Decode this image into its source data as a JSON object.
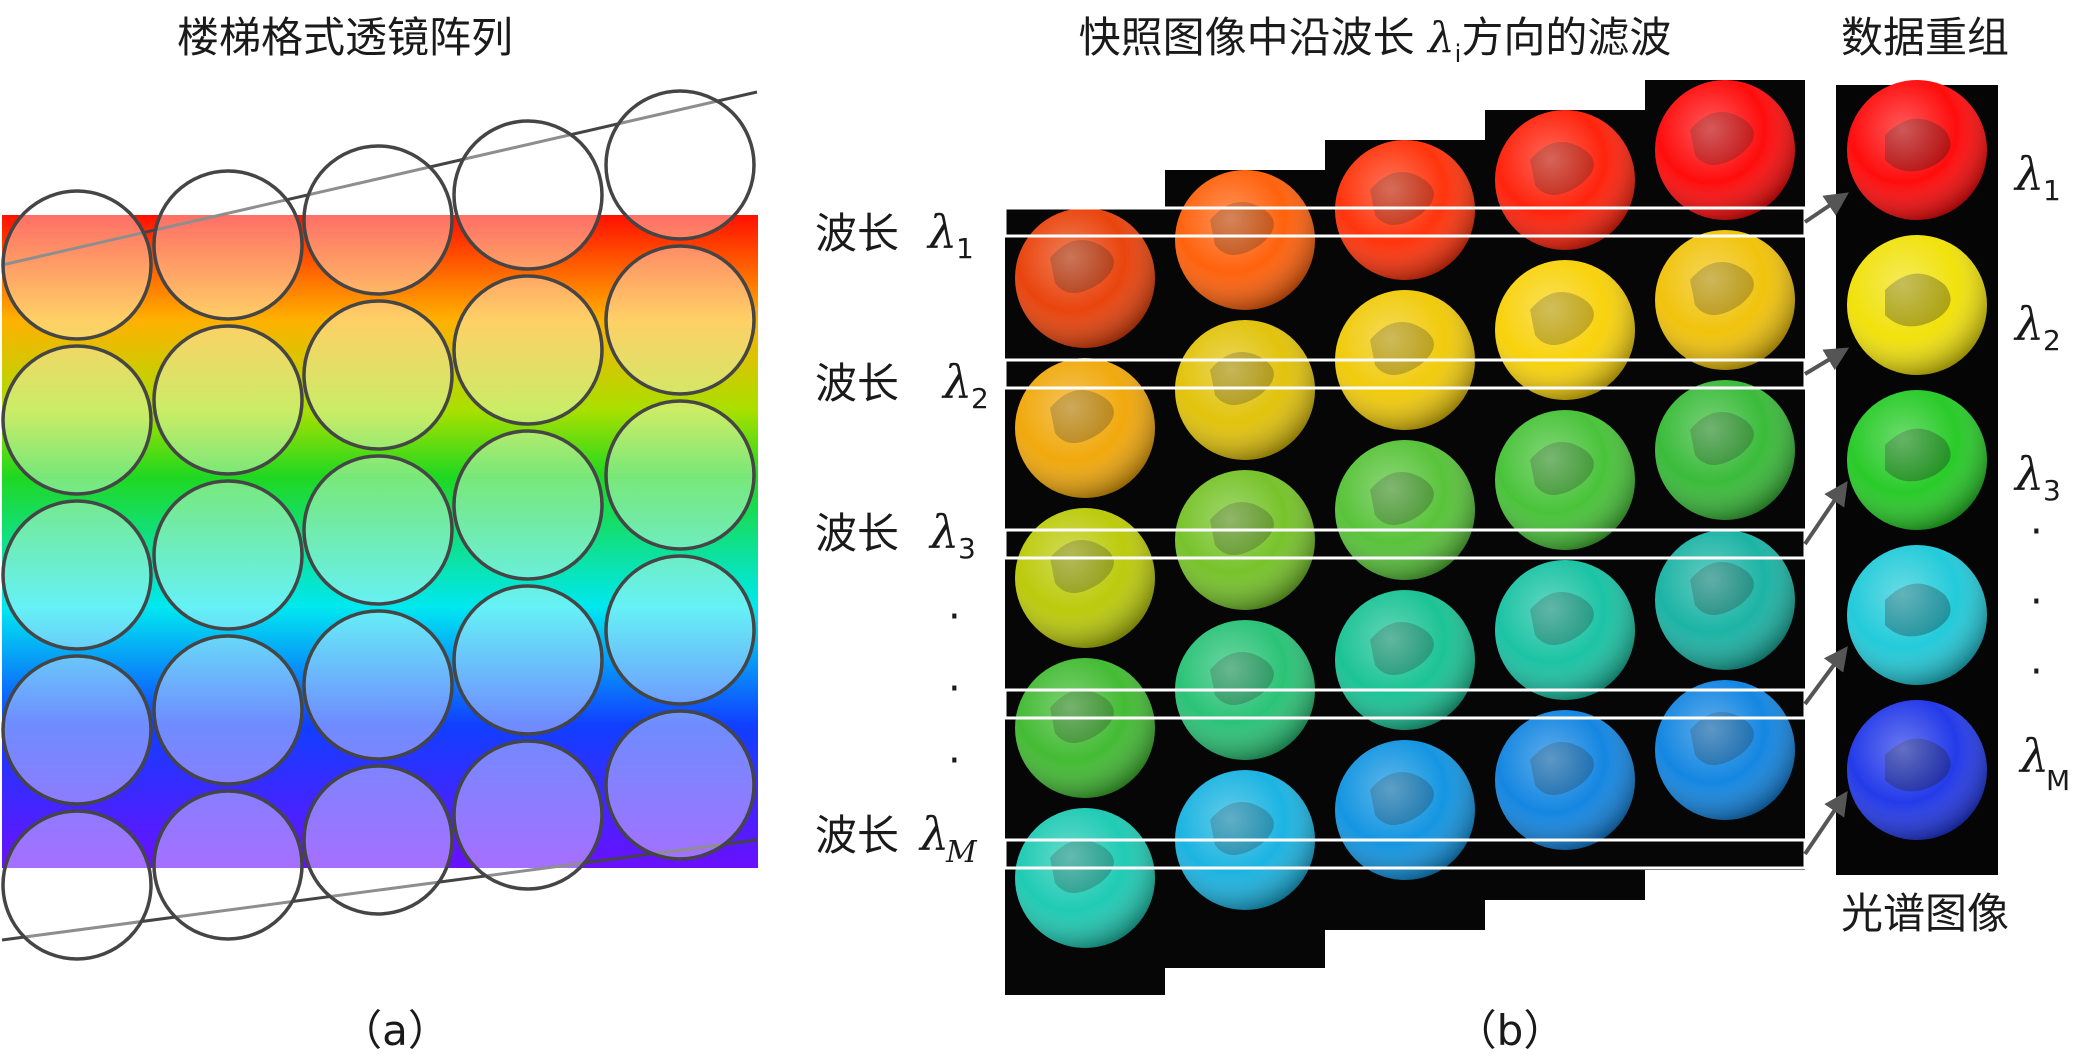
{
  "panel_a": {
    "title": "楼梯格式透镜阵列",
    "caption": "（a）"
  },
  "panel_b": {
    "title_prefix": "快照图像中沿波长 ",
    "title_symbol": "λ",
    "title_subscript": "i",
    "title_suffix": "方向的滤波",
    "caption": "（b）",
    "row_label_text": "波长",
    "row_labels": [
      {
        "symbol": "λ",
        "sub": "1"
      },
      {
        "symbol": "λ",
        "sub": "2"
      },
      {
        "symbol": "λ",
        "sub": "3"
      },
      {
        "symbol": "λ",
        "sub": "M"
      }
    ],
    "row_ellipsis": "·"
  },
  "panel_c": {
    "title": "数据重组",
    "footer": "光谱图像",
    "labels": [
      {
        "symbol": "λ",
        "sub": "1"
      },
      {
        "symbol": "λ",
        "sub": "2"
      },
      {
        "symbol": "λ",
        "sub": "3"
      },
      {
        "symbol": "λ",
        "sub": "M"
      }
    ],
    "ellipsis": "·"
  },
  "colors": {
    "spectrum": [
      "#ff1a00",
      "#ffd000",
      "#3dd43d",
      "#00e0e8",
      "#2030ff",
      "#7a18ff"
    ],
    "column_colors": [
      [
        "#e83a00",
        "#f0a400",
        "#b8c800",
        "#3ab82a",
        "#14c8b0",
        "#1860e0",
        "#2a3ae0"
      ],
      [
        "#ff5a00",
        "#e0c000",
        "#70c020",
        "#20c070",
        "#10b0e0",
        "#1850f0",
        "#ffffff"
      ],
      [
        "#ff2a00",
        "#f0c800",
        "#50c030",
        "#10c090",
        "#0890e0",
        "#2040f0",
        "#ffffff"
      ],
      [
        "#ff1800",
        "#f8d000",
        "#40c030",
        "#10c0a0",
        "#0880e0",
        "#2040f0",
        "#ffffff"
      ],
      [
        "#ff0000",
        "#f0c000",
        "#30b830",
        "#10b0a0",
        "#0880e0",
        "#2030e0",
        "#ffffff"
      ]
    ],
    "result_colors": [
      "#ff0000",
      "#f0e000",
      "#1ec81e",
      "#18c8d8",
      "#1830e8"
    ]
  }
}
